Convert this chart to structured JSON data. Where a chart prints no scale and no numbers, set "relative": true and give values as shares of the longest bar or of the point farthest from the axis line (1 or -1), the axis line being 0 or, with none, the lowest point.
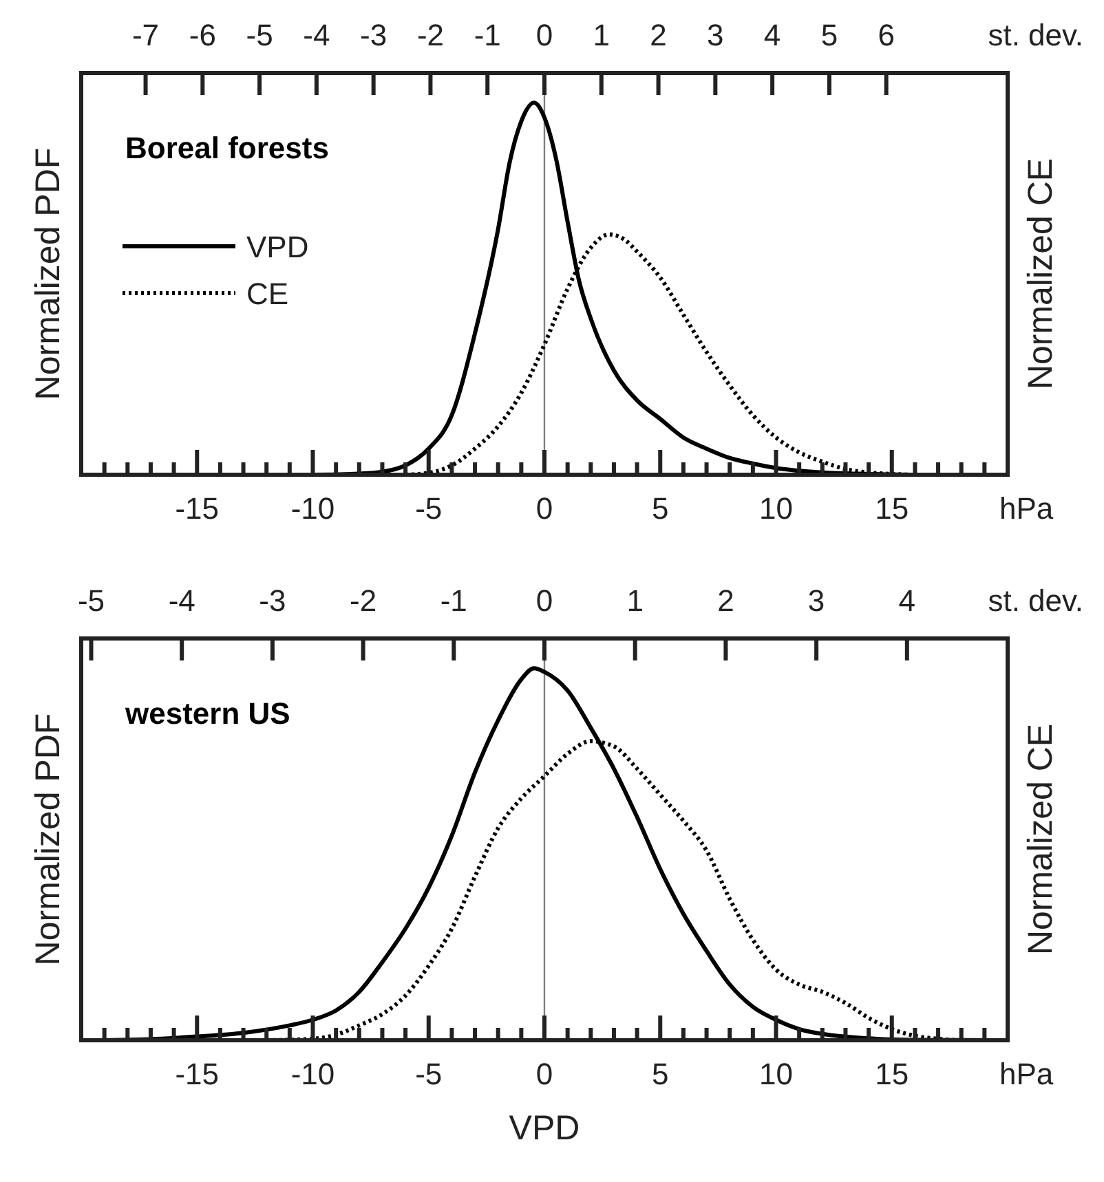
{
  "chart_data": [
    {
      "type": "line",
      "title": "Boreal forests",
      "relative": true,
      "xlabel": "hPa",
      "x2label": "st. dev.",
      "ylabel": "Normalized PDF",
      "y2label": "Normalized CE",
      "xlim": [
        -20,
        20
      ],
      "x2lim": [
        -8.13,
        8.13
      ],
      "xticks": [
        {
          "value": -20,
          "label": null
        },
        {
          "value": -19,
          "label": null
        },
        {
          "value": -18,
          "label": null
        },
        {
          "value": -17,
          "label": null
        },
        {
          "value": -16,
          "label": null
        },
        -15,
        {
          "value": -14,
          "label": null
        },
        {
          "value": -13,
          "label": null
        },
        {
          "value": -12,
          "label": null
        },
        {
          "value": -11,
          "label": null
        },
        -10,
        {
          "value": -9,
          "label": null
        },
        {
          "value": -8,
          "label": null
        },
        {
          "value": -7,
          "label": null
        },
        {
          "value": -6,
          "label": null
        },
        -5,
        {
          "value": -4,
          "label": null
        },
        {
          "value": -3,
          "label": null
        },
        {
          "value": -2,
          "label": null
        },
        {
          "value": -1,
          "label": null
        },
        0,
        {
          "value": 1,
          "label": null
        },
        {
          "value": 2,
          "label": null
        },
        {
          "value": 3,
          "label": null
        },
        {
          "value": 4,
          "label": null
        },
        5,
        {
          "value": 6,
          "label": null
        },
        {
          "value": 7,
          "label": null
        },
        {
          "value": 8,
          "label": null
        },
        {
          "value": 9,
          "label": null
        },
        10,
        {
          "value": 11,
          "label": null
        },
        {
          "value": 12,
          "label": null
        },
        {
          "value": 13,
          "label": null
        },
        {
          "value": 14,
          "label": null
        },
        15,
        {
          "value": 16,
          "label": null
        },
        {
          "value": 17,
          "label": null
        },
        {
          "value": 18,
          "label": null
        },
        {
          "value": 19,
          "label": null
        },
        {
          "value": 20,
          "label": null
        }
      ],
      "x2ticks": [
        -7,
        -6,
        -5,
        -4,
        -3,
        -2,
        -1,
        0,
        1,
        2,
        3,
        4,
        5,
        6
      ],
      "legend": "left",
      "ref_lines": [
        {
          "axis": "x",
          "value": 0,
          "color": "#808080"
        }
      ],
      "series": [
        {
          "name": "VPD",
          "color": "#000000",
          "line_style": "solid",
          "x": [
            -20,
            -10,
            -8,
            -7,
            -6,
            -5,
            -4,
            -3,
            -2,
            -1.5,
            -1,
            -0.45,
            0,
            0.5,
            1,
            1.5,
            2,
            3,
            4,
            5,
            6,
            7,
            8,
            9,
            10,
            12,
            14,
            16,
            20
          ],
          "values": [
            0,
            0,
            0.003,
            0.008,
            0.025,
            0.07,
            0.16,
            0.38,
            0.66,
            0.84,
            0.95,
            1,
            0.96,
            0.85,
            0.68,
            0.52,
            0.42,
            0.28,
            0.2,
            0.15,
            0.1,
            0.07,
            0.045,
            0.03,
            0.018,
            0.006,
            0.002,
            0,
            0
          ]
        },
        {
          "name": "CE",
          "color": "#000000",
          "line_style": "dotted",
          "x": [
            -6,
            -5,
            -4,
            -3,
            -2,
            -1,
            0,
            1,
            2,
            2.8,
            3.5,
            4,
            5,
            6,
            7,
            8,
            9,
            10,
            11,
            12,
            13,
            14,
            15,
            16,
            20
          ],
          "values": [
            0,
            0.005,
            0.025,
            0.07,
            0.13,
            0.22,
            0.35,
            0.5,
            0.61,
            0.646,
            0.63,
            0.6,
            0.53,
            0.43,
            0.33,
            0.24,
            0.16,
            0.1,
            0.06,
            0.035,
            0.015,
            0.006,
            0.002,
            0,
            0
          ]
        }
      ]
    },
    {
      "type": "line",
      "title": "western US",
      "relative": true,
      "xlabel": "hPa",
      "x2label": "st. dev.",
      "ylabel": "Normalized PDF",
      "y2label": "Normalized CE",
      "annotations": [
        "VPD"
      ],
      "xlim": [
        -20,
        20
      ],
      "x2lim": [
        -5.11,
        5.11
      ],
      "xticks": [
        {
          "value": -20,
          "label": null
        },
        {
          "value": -19,
          "label": null
        },
        {
          "value": -18,
          "label": null
        },
        {
          "value": -17,
          "label": null
        },
        {
          "value": -16,
          "label": null
        },
        -15,
        {
          "value": -14,
          "label": null
        },
        {
          "value": -13,
          "label": null
        },
        {
          "value": -12,
          "label": null
        },
        {
          "value": -11,
          "label": null
        },
        -10,
        {
          "value": -9,
          "label": null
        },
        {
          "value": -8,
          "label": null
        },
        {
          "value": -7,
          "label": null
        },
        {
          "value": -6,
          "label": null
        },
        -5,
        {
          "value": -4,
          "label": null
        },
        {
          "value": -3,
          "label": null
        },
        {
          "value": -2,
          "label": null
        },
        {
          "value": -1,
          "label": null
        },
        0,
        {
          "value": 1,
          "label": null
        },
        {
          "value": 2,
          "label": null
        },
        {
          "value": 3,
          "label": null
        },
        {
          "value": 4,
          "label": null
        },
        5,
        {
          "value": 6,
          "label": null
        },
        {
          "value": 7,
          "label": null
        },
        {
          "value": 8,
          "label": null
        },
        {
          "value": 9,
          "label": null
        },
        10,
        {
          "value": 11,
          "label": null
        },
        {
          "value": 12,
          "label": null
        },
        {
          "value": 13,
          "label": null
        },
        {
          "value": 14,
          "label": null
        },
        15,
        {
          "value": 16,
          "label": null
        },
        {
          "value": 17,
          "label": null
        },
        {
          "value": 18,
          "label": null
        },
        {
          "value": 19,
          "label": null
        },
        {
          "value": 20,
          "label": null
        }
      ],
      "x2ticks": [
        -5,
        -4,
        -3,
        -2,
        -1,
        0,
        1,
        2,
        3,
        4
      ],
      "ref_lines": [
        {
          "axis": "x",
          "value": 0,
          "color": "#808080"
        }
      ],
      "series": [
        {
          "color": "#000000",
          "line_style": "solid",
          "x": [
            -20,
            -17,
            -15,
            -13,
            -11,
            -10,
            -9,
            -8,
            -7,
            -6,
            -5,
            -4,
            -3,
            -2,
            -1,
            -0.45,
            0,
            1,
            2,
            3,
            4,
            5,
            6,
            7,
            8,
            9,
            10,
            11,
            12,
            14,
            16,
            20
          ],
          "values": [
            0,
            0.003,
            0.01,
            0.02,
            0.04,
            0.055,
            0.08,
            0.13,
            0.21,
            0.3,
            0.41,
            0.55,
            0.72,
            0.86,
            0.97,
            1,
            0.99,
            0.94,
            0.84,
            0.73,
            0.6,
            0.46,
            0.34,
            0.24,
            0.15,
            0.09,
            0.055,
            0.03,
            0.017,
            0.005,
            0.001,
            0
          ]
        },
        {
          "color": "#000000",
          "line_style": "dotted",
          "x": [
            -12,
            -10,
            -9,
            -8,
            -7,
            -6,
            -5,
            -4,
            -3,
            -2,
            -1,
            0,
            1,
            2,
            3,
            4,
            5,
            6,
            7,
            8,
            9,
            10,
            11,
            12,
            13,
            14,
            15,
            16,
            17,
            18,
            20
          ],
          "values": [
            0,
            0.004,
            0.015,
            0.04,
            0.07,
            0.12,
            0.2,
            0.3,
            0.44,
            0.57,
            0.65,
            0.71,
            0.77,
            0.804,
            0.79,
            0.73,
            0.66,
            0.59,
            0.51,
            0.38,
            0.27,
            0.19,
            0.15,
            0.13,
            0.1,
            0.06,
            0.03,
            0.012,
            0.004,
            0,
            0
          ]
        }
      ]
    }
  ]
}
